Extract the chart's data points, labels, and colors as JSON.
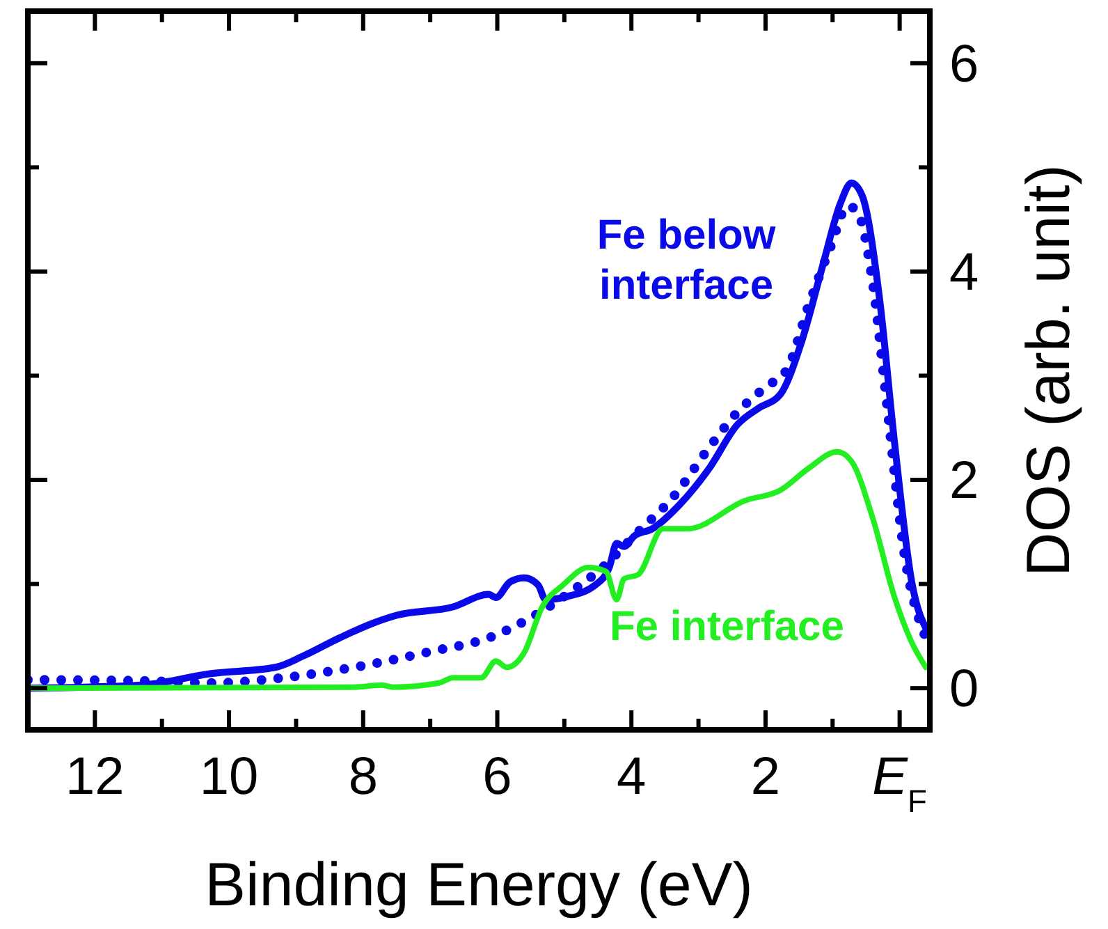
{
  "chart_data": {
    "type": "line",
    "xlabel": "Binding Energy (eV)",
    "ylabel": "DOS (arb. unit)",
    "xlim": [
      13,
      -0.45
    ],
    "ylim": [
      -0.4,
      6.5
    ],
    "xticks": [
      12,
      {
        "value": 11,
        "label": null
      },
      10,
      {
        "value": 9,
        "label": null
      },
      8,
      {
        "value": 7,
        "label": null
      },
      6,
      {
        "value": 5,
        "label": null
      },
      4,
      {
        "value": 3,
        "label": null
      },
      2,
      {
        "value": 1,
        "label": null
      },
      {
        "value": 0,
        "label": "E$_{F}$"
      }
    ],
    "yticks": [
      0,
      {
        "value": 1,
        "label": null
      },
      2,
      {
        "value": 3,
        "label": null
      },
      4,
      {
        "value": 5,
        "label": null
      },
      6
    ],
    "grid": false,
    "marker": "none",
    "series": [
      {
        "name": "Fe below interface",
        "color": "#0a0ae8",
        "line_style": "solid",
        "x": [
          13.0,
          11.3,
          10.27,
          9.31,
          8.89,
          8.36,
          7.83,
          7.5,
          6.66,
          6.13,
          6.02,
          5.81,
          5.6,
          5.39,
          5.28,
          4.96,
          4.54,
          4.33,
          4.22,
          4.11,
          3.96,
          3.69,
          3.27,
          2.84,
          2.42,
          2.1,
          1.78,
          1.46,
          1.15,
          0.88,
          0.72,
          0.56,
          0.3,
          0.08,
          -0.18,
          -0.42
        ],
        "values": [
          0.0,
          0.03,
          0.14,
          0.2,
          0.31,
          0.48,
          0.63,
          0.7,
          0.78,
          0.9,
          0.87,
          1.02,
          1.06,
          0.99,
          0.85,
          0.88,
          0.99,
          1.16,
          1.39,
          1.36,
          1.46,
          1.53,
          1.77,
          2.11,
          2.53,
          2.69,
          2.82,
          3.33,
          4.05,
          4.66,
          4.85,
          4.73,
          3.74,
          2.38,
          1.02,
          0.54
        ]
      },
      {
        "color": "#0a0ae8",
        "line_style": "dotted",
        "x": [
          13.0,
          11.3,
          10.27,
          9.2,
          8.14,
          7.08,
          6.02,
          5.49,
          4.96,
          4.43,
          3.9,
          3.37,
          2.84,
          2.42,
          2.0,
          1.68,
          1.36,
          1.04,
          0.77,
          0.62,
          0.4,
          0.19,
          -0.07,
          -0.39
        ],
        "values": [
          0.08,
          0.07,
          0.05,
          0.1,
          0.2,
          0.34,
          0.51,
          0.68,
          0.9,
          1.16,
          1.5,
          1.84,
          2.31,
          2.65,
          2.89,
          3.06,
          3.67,
          4.22,
          4.63,
          4.56,
          3.88,
          2.72,
          1.29,
          0.48
        ]
      },
      {
        "name": "Fe interface",
        "color": "#22ee22",
        "line_style": "solid",
        "x": [
          13.0,
          8.14,
          7.72,
          7.56,
          6.87,
          6.66,
          6.24,
          6.02,
          5.86,
          5.6,
          5.33,
          5.02,
          4.64,
          4.38,
          4.22,
          4.11,
          3.9,
          3.53,
          3.16,
          2.31,
          1.78,
          1.36,
          0.93,
          0.72,
          0.4,
          0.08,
          -0.18,
          -0.39
        ],
        "values": [
          0.0,
          0.01,
          0.03,
          0.01,
          0.05,
          0.1,
          0.1,
          0.26,
          0.2,
          0.34,
          0.78,
          0.99,
          1.16,
          1.12,
          0.85,
          1.05,
          1.09,
          1.53,
          1.53,
          1.8,
          1.9,
          2.11,
          2.27,
          2.18,
          1.63,
          0.88,
          0.44,
          0.2
        ]
      }
    ]
  }
}
